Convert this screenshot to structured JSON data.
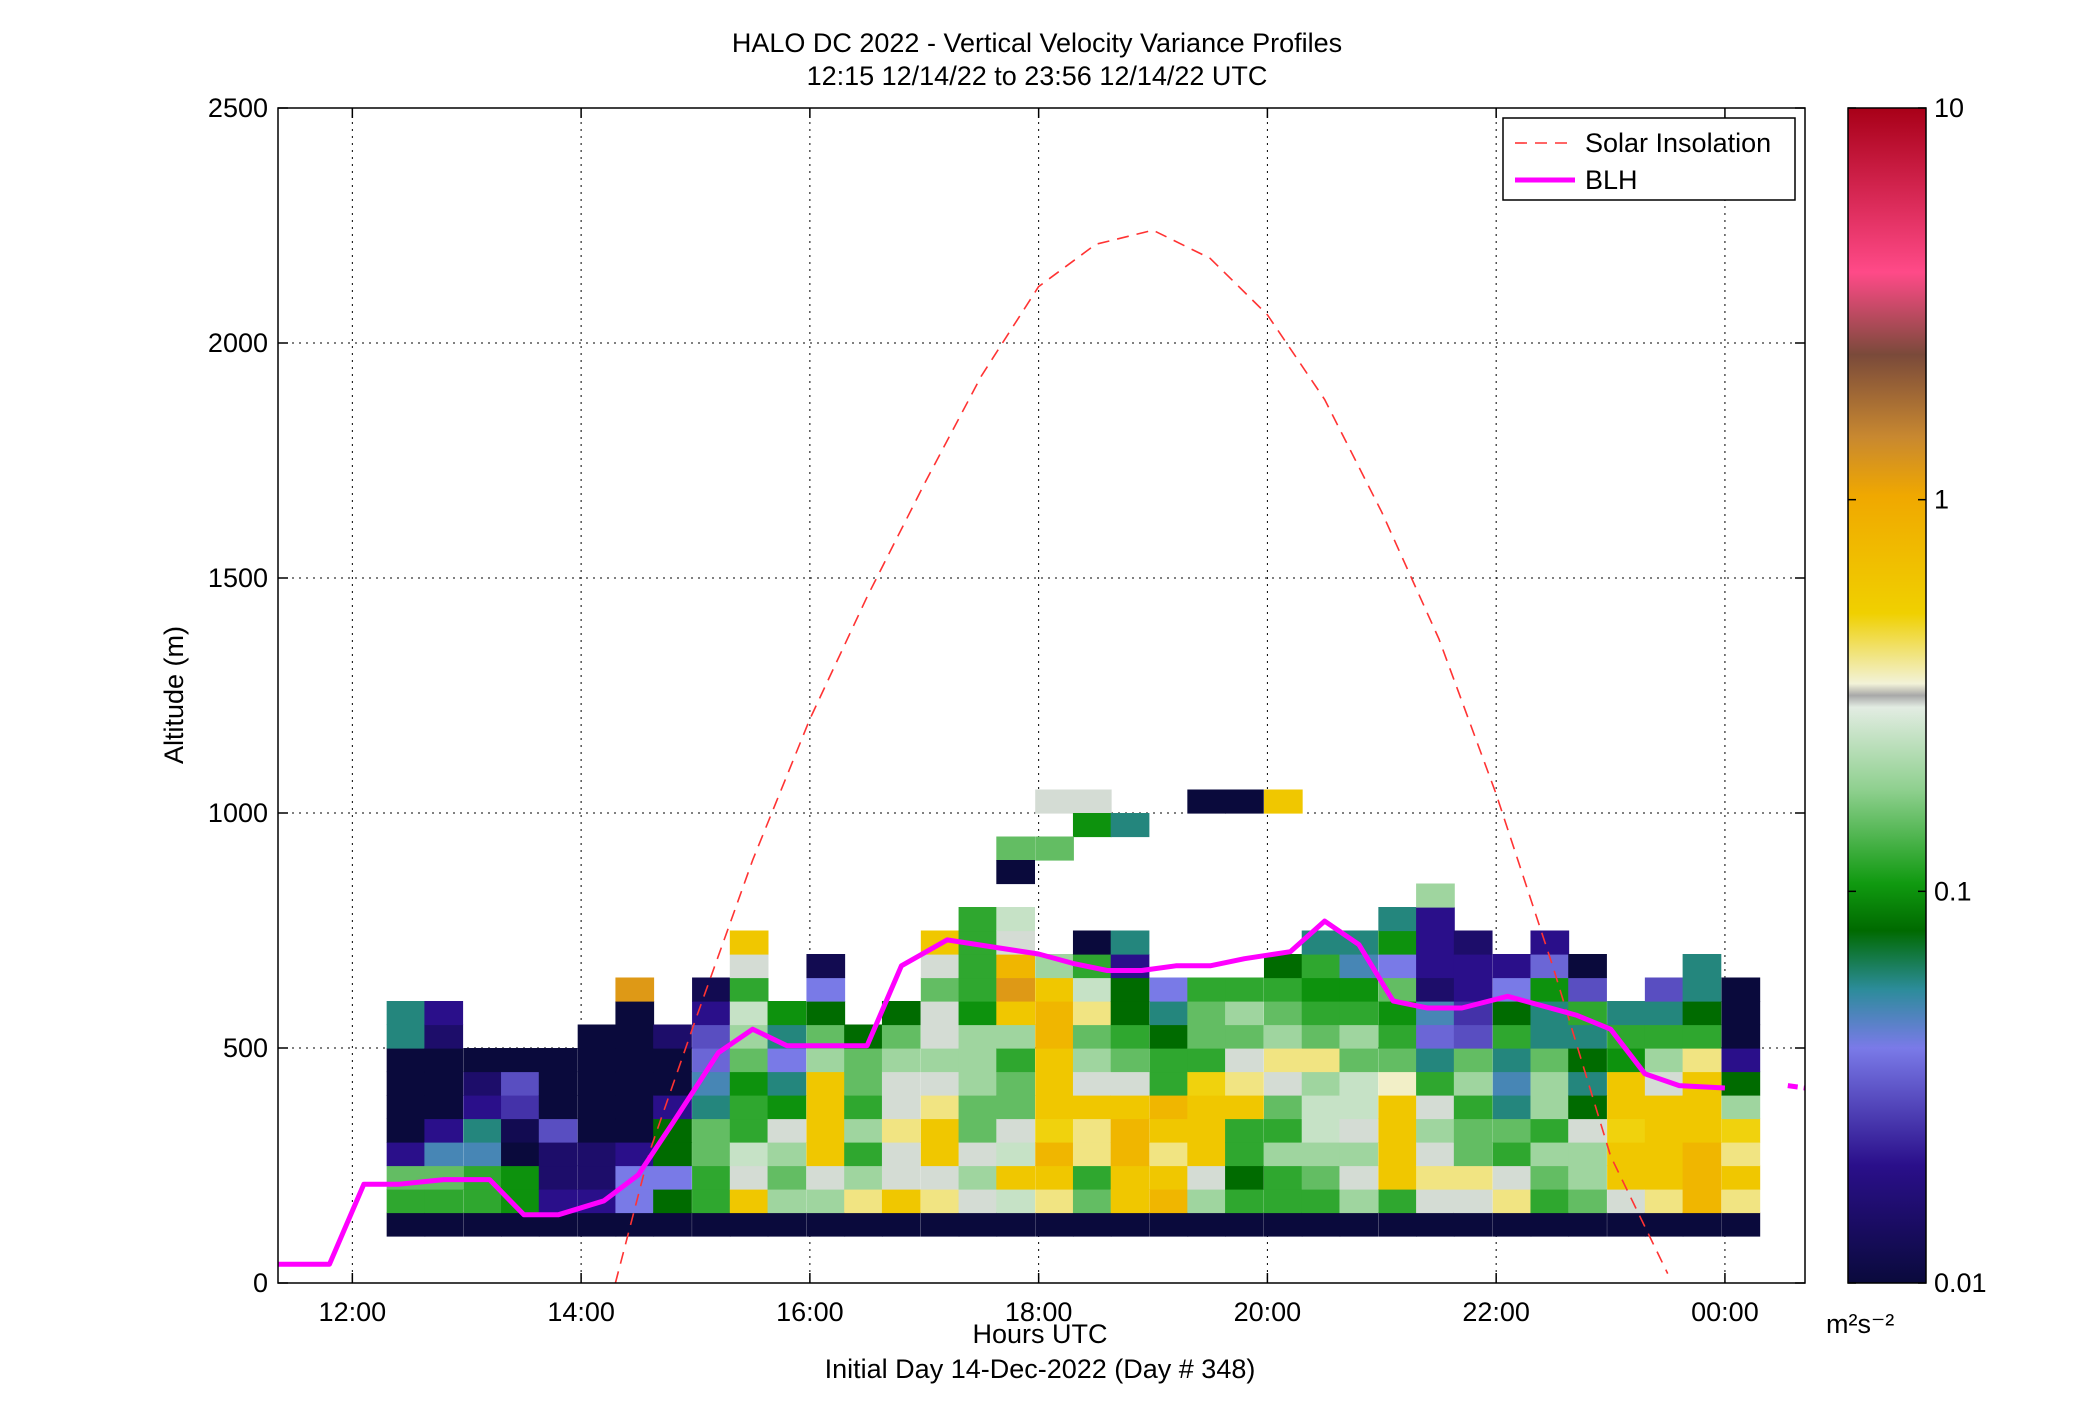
{
  "chart_data": {
    "type": "heatmap",
    "title": "HALO DC 2022 - Vertical Velocity Variance Profiles",
    "subtitle": "12:15 12/14/22 to 23:56 12/14/22  UTC",
    "xlabel": "Hours UTC",
    "xlabel2": "Initial Day 14-Dec-2022 (Day # 348)",
    "ylabel": "Altitude (m)",
    "xlim": [
      11.35,
      24.7
    ],
    "ylim": [
      0,
      2500
    ],
    "x_ticks": [
      12,
      14,
      16,
      18,
      20,
      22,
      24
    ],
    "x_tick_labels": [
      "12:00",
      "14:00",
      "16:00",
      "18:00",
      "20:00",
      "22:00",
      "00:00"
    ],
    "y_ticks": [
      0,
      500,
      1000,
      1500,
      2000,
      2500
    ],
    "y_tick_labels": [
      "0",
      "500",
      "1000",
      "1500",
      "2000",
      "2500"
    ],
    "grid": true,
    "legend_position": "top-right",
    "legend": [
      {
        "label": "Solar Insolation",
        "style": "dashed",
        "color": "#ff3333"
      },
      {
        "label": "BLH",
        "style": "solid",
        "color": "#ff00ff"
      }
    ],
    "colorbar": {
      "scale": "log",
      "min": 0.01,
      "max": 10,
      "tick_values": [
        0.01,
        0.1,
        1,
        10
      ],
      "tick_labels": [
        "0.01",
        "0.1",
        "1",
        "10"
      ],
      "unit_label": "m²s⁻²"
    },
    "cell_width_hours": 0.333,
    "cell_height_m": 50,
    "heatmap_columns": [
      {
        "x": 12.3,
        "y0": 100,
        "values": [
          0.01,
          0.12,
          0.15,
          0.02,
          0.01,
          0.01,
          0.01,
          0.01,
          0.06,
          0.06
        ]
      },
      {
        "x": 12.63,
        "y0": 100,
        "values": [
          0.01,
          0.12,
          0.15,
          0.05,
          0.02,
          0.01,
          0.01,
          0.01,
          0.015,
          0.02
        ]
      },
      {
        "x": 12.97,
        "y0": 100,
        "values": [
          0.01,
          0.12,
          0.12,
          0.05,
          0.06,
          0.02,
          0.015,
          0.01
        ]
      },
      {
        "x": 13.3,
        "y0": 100,
        "values": [
          0.01,
          0.1,
          0.1,
          0.01,
          0.012,
          0.025,
          0.03,
          0.01
        ]
      },
      {
        "x": 13.63,
        "y0": 100,
        "values": [
          0.01,
          0.02,
          0.015,
          0.015,
          0.03,
          0.01,
          0.01,
          0.01
        ]
      },
      {
        "x": 13.97,
        "y0": 100,
        "values": [
          0.01,
          0.02,
          0.015,
          0.015,
          0.01,
          0.01,
          0.01,
          0.01,
          0.01
        ]
      },
      {
        "x": 14.3,
        "y0": 100,
        "values": [
          0.01,
          0.04,
          0.04,
          0.02,
          0.01,
          0.01,
          0.01,
          0.01,
          0.01,
          0.01,
          1.2
        ]
      },
      {
        "x": 14.63,
        "y0": 100,
        "values": [
          0.01,
          0.08,
          0.04,
          0.08,
          0.08,
          0.02,
          0.01,
          0.01,
          0.015
        ]
      },
      {
        "x": 14.97,
        "y0": 100,
        "values": [
          0.01,
          0.12,
          0.12,
          0.15,
          0.15,
          0.06,
          0.05,
          0.035,
          0.03,
          0.02,
          0.012
        ]
      },
      {
        "x": 15.3,
        "y0": 100,
        "values": [
          0.01,
          0.6,
          0.3,
          0.25,
          0.12,
          0.12,
          0.1,
          0.15,
          0.2,
          0.25,
          0.12,
          0.3,
          0.6
        ]
      },
      {
        "x": 15.63,
        "y0": 100,
        "values": [
          0.01,
          0.2,
          0.15,
          0.2,
          0.3,
          0.1,
          0.06,
          0.04,
          0.06,
          0.1
        ]
      },
      {
        "x": 15.97,
        "y0": 100,
        "values": [
          0.01,
          0.2,
          0.3,
          0.6,
          0.6,
          0.6,
          0.6,
          0.2,
          0.15,
          0.08,
          0.04,
          0.012
        ]
      },
      {
        "x": 16.3,
        "y0": 100,
        "values": [
          0.01,
          0.4,
          0.2,
          0.12,
          0.2,
          0.12,
          0.15,
          0.15,
          0.08
        ]
      },
      {
        "x": 16.63,
        "y0": 100,
        "values": [
          0.01,
          0.6,
          0.3,
          0.3,
          0.4,
          0.3,
          0.3,
          0.2,
          0.15,
          0.08
        ]
      },
      {
        "x": 16.97,
        "y0": 100,
        "values": [
          0.01,
          0.4,
          0.3,
          0.6,
          0.6,
          0.4,
          0.3,
          0.2,
          0.3,
          0.3,
          0.15,
          0.3,
          0.6
        ]
      },
      {
        "x": 17.3,
        "y0": 100,
        "values": [
          0.01,
          0.3,
          0.2,
          0.3,
          0.15,
          0.15,
          0.2,
          0.2,
          0.2,
          0.1,
          0.12,
          0.12,
          0.12,
          0.12
        ]
      },
      {
        "x": 17.63,
        "y0": 100,
        "values": [
          0.01,
          0.25,
          0.6,
          0.25,
          0.3,
          0.15,
          0.15,
          0.12,
          0.2,
          0.6,
          1.2,
          0.8,
          0.3,
          0.25
        ]
      },
      {
        "x": 17.97,
        "y0": 100,
        "values": [
          0.01,
          0.4,
          0.6,
          0.8,
          0.5,
          0.6,
          0.6,
          0.6,
          0.8,
          0.8,
          0.6,
          0.2
        ]
      },
      {
        "x": 18.3,
        "y0": 100,
        "values": [
          0.01,
          0.15,
          0.12,
          0.4,
          0.4,
          0.6,
          0.3,
          0.2,
          0.15,
          0.4,
          0.25,
          0.12,
          0.01
        ]
      },
      {
        "x": 18.63,
        "y0": 100,
        "values": [
          0.01,
          0.6,
          0.6,
          0.8,
          0.8,
          0.6,
          0.3,
          0.15,
          0.12,
          0.08,
          0.08,
          0.02,
          0.06
        ]
      },
      {
        "x": 18.97,
        "y0": 100,
        "values": [
          0.01,
          0.8,
          0.6,
          0.4,
          0.6,
          0.8,
          0.12,
          0.12,
          0.08,
          0.06,
          0.04
        ]
      },
      {
        "x": 19.3,
        "y0": 100,
        "values": [
          0.01,
          0.2,
          0.3,
          0.6,
          0.6,
          0.6,
          0.5,
          0.12,
          0.15,
          0.15,
          0.12
        ]
      },
      {
        "x": 19.63,
        "y0": 100,
        "values": [
          0.01,
          0.12,
          0.08,
          0.12,
          0.12,
          0.6,
          0.4,
          0.3,
          0.15,
          0.2,
          0.12
        ]
      },
      {
        "x": 19.97,
        "y0": 100,
        "values": [
          0.01,
          0.12,
          0.12,
          0.2,
          0.12,
          0.15,
          0.3,
          0.4,
          0.2,
          0.15,
          0.12,
          0.08
        ]
      },
      {
        "x": 20.3,
        "y0": 100,
        "values": [
          0.01,
          0.12,
          0.15,
          0.2,
          0.25,
          0.25,
          0.2,
          0.4,
          0.15,
          0.12,
          0.1,
          0.12,
          0.06
        ]
      },
      {
        "x": 20.63,
        "y0": 100,
        "values": [
          0.01,
          0.2,
          0.3,
          0.2,
          0.3,
          0.25,
          0.25,
          0.15,
          0.2,
          0.12,
          0.1,
          0.05,
          0.06
        ]
      },
      {
        "x": 20.97,
        "y0": 100,
        "values": [
          0.01,
          0.12,
          0.6,
          0.6,
          0.6,
          0.6,
          0.35,
          0.15,
          0.12,
          0.1,
          0.15,
          0.04,
          0.1,
          0.06
        ]
      },
      {
        "x": 21.3,
        "y0": 100,
        "values": [
          0.01,
          0.3,
          0.4,
          0.3,
          0.2,
          0.3,
          0.12,
          0.06,
          0.035,
          0.05,
          0.015,
          0.02,
          0.02,
          0.02,
          0.2
        ]
      },
      {
        "x": 21.63,
        "y0": 100,
        "values": [
          0.01,
          0.3,
          0.4,
          0.15,
          0.15,
          0.12,
          0.2,
          0.15,
          0.03,
          0.025,
          0.02,
          0.02,
          0.015
        ]
      },
      {
        "x": 21.97,
        "y0": 100,
        "values": [
          0.01,
          0.4,
          0.3,
          0.12,
          0.15,
          0.06,
          0.05,
          0.06,
          0.12,
          0.08,
          0.04,
          0.02
        ]
      },
      {
        "x": 22.3,
        "y0": 100,
        "values": [
          0.01,
          0.12,
          0.15,
          0.2,
          0.12,
          0.2,
          0.2,
          0.15,
          0.06,
          0.06,
          0.1,
          0.035,
          0.02
        ]
      },
      {
        "x": 22.63,
        "y0": 100,
        "values": [
          0.01,
          0.15,
          0.2,
          0.2,
          0.3,
          0.08,
          0.06,
          0.08,
          0.06,
          0.12,
          0.03,
          0.01
        ]
      },
      {
        "x": 22.97,
        "y0": 100,
        "values": [
          0.01,
          0.3,
          0.6,
          0.6,
          0.5,
          0.6,
          0.6,
          0.1,
          0.12,
          0.06
        ]
      },
      {
        "x": 23.3,
        "y0": 100,
        "values": [
          0.01,
          0.4,
          0.6,
          0.6,
          0.6,
          0.6,
          0.3,
          0.2,
          0.12,
          0.06,
          0.03
        ]
      },
      {
        "x": 23.63,
        "y0": 100,
        "values": [
          0.01,
          0.8,
          0.8,
          0.8,
          0.6,
          0.6,
          0.6,
          0.4,
          0.12,
          0.08,
          0.06,
          0.06
        ]
      },
      {
        "x": 23.97,
        "y0": 100,
        "values": [
          0.01,
          0.4,
          0.6,
          0.4,
          0.5,
          0.2,
          0.08,
          0.02,
          0.01,
          0.01,
          0.01
        ]
      }
    ],
    "heatmap_extra_cells": [
      {
        "x": 17.97,
        "y": 1000,
        "v": 0.3
      },
      {
        "x": 18.3,
        "y": 1000,
        "v": 0.3
      },
      {
        "x": 18.3,
        "y": 950,
        "v": 0.1
      },
      {
        "x": 18.63,
        "y": 950,
        "v": 0.06
      },
      {
        "x": 17.63,
        "y": 900,
        "v": 0.15
      },
      {
        "x": 17.97,
        "y": 900,
        "v": 0.15
      },
      {
        "x": 17.63,
        "y": 850,
        "v": 0.01
      },
      {
        "x": 19.3,
        "y": 1000,
        "v": 0.01
      },
      {
        "x": 19.63,
        "y": 1000,
        "v": 0.01
      },
      {
        "x": 19.97,
        "y": 1000,
        "v": 0.6
      }
    ],
    "series": [
      {
        "name": "BLH",
        "x": [
          11.35,
          11.8,
          12.1,
          12.4,
          12.8,
          13.2,
          13.5,
          13.8,
          14.2,
          14.5,
          14.8,
          15.2,
          15.5,
          15.8,
          16.2,
          16.5,
          16.8,
          17.2,
          17.6,
          18.0,
          18.3,
          18.6,
          18.9,
          19.2,
          19.5,
          19.8,
          20.2,
          20.5,
          20.8,
          21.1,
          21.4,
          21.7,
          22.1,
          22.4,
          22.7,
          23.0,
          23.3,
          23.6,
          24.0
        ],
        "y": [
          40,
          40,
          210,
          210,
          220,
          220,
          145,
          145,
          175,
          230,
          340,
          490,
          540,
          505,
          505,
          505,
          675,
          730,
          715,
          700,
          680,
          665,
          665,
          675,
          675,
          690,
          705,
          770,
          720,
          600,
          585,
          585,
          610,
          590,
          570,
          540,
          445,
          420,
          415
        ]
      },
      {
        "name": "BLH (later segment)",
        "x": [
          24.55,
          24.7
        ],
        "y": [
          420,
          415
        ]
      },
      {
        "name": "Solar Insolation",
        "x": [
          14.3,
          14.6,
          15.0,
          15.5,
          16.0,
          16.5,
          17.0,
          17.5,
          18.0,
          18.5,
          19.0,
          19.5,
          20.0,
          20.5,
          21.0,
          21.5,
          22.0,
          22.5,
          23.0,
          23.5
        ],
        "y": [
          0,
          280,
          560,
          900,
          1200,
          1460,
          1700,
          1930,
          2120,
          2210,
          2240,
          2180,
          2060,
          1880,
          1640,
          1370,
          1040,
          670,
          270,
          20
        ]
      }
    ]
  }
}
